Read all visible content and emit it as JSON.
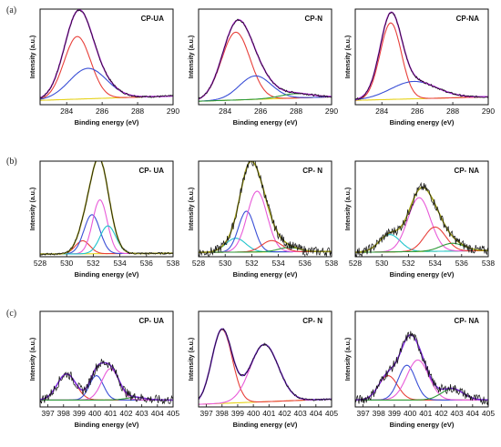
{
  "figure": {
    "row_labels": [
      "(a)",
      "(b)",
      "(c)"
    ]
  },
  "chart_data": [
    {
      "type": "line",
      "row": 0,
      "col": 0,
      "title": "CP-UA",
      "xlabel": "Binding energy (eV)",
      "ylabel": "Intensity (a.u.)",
      "xlim": [
        282.5,
        290
      ],
      "ylim": [
        0,
        1.1
      ],
      "x_ticks": [
        "284",
        "286",
        "288",
        "290"
      ],
      "x_tick_values": [
        284,
        286,
        288,
        290
      ],
      "baseline": {
        "start": 0.05,
        "end": 0.1
      },
      "components": [
        {
          "name": "C1",
          "color": "#e8403a",
          "center": 284.6,
          "width": 0.75,
          "height": 0.72
        },
        {
          "name": "C2",
          "color": "#3a4fd6",
          "center": 285.2,
          "width": 1.05,
          "height": 0.35
        }
      ],
      "envelope_color": "#b02ad8",
      "noise": false
    },
    {
      "type": "line",
      "row": 0,
      "col": 1,
      "title": "CP-N",
      "xlabel": "Binding energy (eV)",
      "ylabel": "Intensity (a.u.)",
      "xlim": [
        282.5,
        290
      ],
      "ylim": [
        0,
        1.1
      ],
      "x_ticks": [
        "284",
        "286",
        "288",
        "290"
      ],
      "x_tick_values": [
        284,
        286,
        288,
        290
      ],
      "baseline": {
        "start": 0.04,
        "end": 0.09
      },
      "components": [
        {
          "name": "C1",
          "color": "#e8403a",
          "center": 284.6,
          "width": 0.8,
          "height": 0.78
        },
        {
          "name": "C2",
          "color": "#3a4fd6",
          "center": 285.7,
          "width": 0.9,
          "height": 0.27
        },
        {
          "name": "C3",
          "color": "#2e9a3a",
          "center": 288.0,
          "width": 0.9,
          "height": 0.05
        }
      ],
      "envelope_color": "#b02ad8",
      "noise": false
    },
    {
      "type": "line",
      "row": 0,
      "col": 2,
      "title": "CP-NA",
      "xlabel": "Binding energy (eV)",
      "ylabel": "Intensity (a.u.)",
      "xlim": [
        282.5,
        290
      ],
      "ylim": [
        0,
        1.1
      ],
      "x_ticks": [
        "284",
        "286",
        "288",
        "290"
      ],
      "x_tick_values": [
        284,
        286,
        288,
        290
      ],
      "baseline": {
        "start": 0.05,
        "end": 0.09
      },
      "components": [
        {
          "name": "C1",
          "color": "#e8403a",
          "center": 284.5,
          "width": 0.6,
          "height": 0.88
        },
        {
          "name": "C2",
          "color": "#3a4fd6",
          "center": 285.8,
          "width": 1.3,
          "height": 0.2
        }
      ],
      "envelope_color": "#b02ad8",
      "noise": false
    },
    {
      "type": "line",
      "row": 1,
      "col": 0,
      "title": "CP- UA",
      "xlabel": "Binding energy (eV)",
      "ylabel": "Intensity (a.u.)",
      "xlim": [
        528,
        538
      ],
      "ylim": [
        0,
        1.1
      ],
      "x_ticks": [
        "528",
        "530",
        "532",
        "534",
        "536",
        "538"
      ],
      "x_tick_values": [
        528,
        530,
        532,
        534,
        536,
        538
      ],
      "baseline": {
        "start": 0.03,
        "end": 0.04
      },
      "components": [
        {
          "name": "O1",
          "color": "#e8403a",
          "center": 531.2,
          "width": 0.55,
          "height": 0.15
        },
        {
          "name": "O2",
          "color": "#3a4fd6",
          "center": 531.9,
          "width": 0.6,
          "height": 0.45
        },
        {
          "name": "O3",
          "color": "#e85ad8",
          "center": 532.5,
          "width": 0.55,
          "height": 0.62
        },
        {
          "name": "O4",
          "color": "#20c4cc",
          "center": 533.1,
          "width": 0.6,
          "height": 0.32
        }
      ],
      "envelope_color": "#9c9a16",
      "noise": false
    },
    {
      "type": "line",
      "row": 1,
      "col": 1,
      "title": "CP- N",
      "xlabel": "Binding energy (eV)",
      "ylabel": "Intensity (a.u.)",
      "xlim": [
        528,
        538
      ],
      "ylim": [
        0,
        1.1
      ],
      "x_ticks": [
        "528",
        "530",
        "532",
        "534",
        "536",
        "538"
      ],
      "x_tick_values": [
        528,
        530,
        532,
        534,
        536,
        538
      ],
      "baseline": {
        "start": 0.05,
        "end": 0.06
      },
      "components": [
        {
          "name": "O1",
          "color": "#20c4cc",
          "center": 530.8,
          "width": 0.75,
          "height": 0.16
        },
        {
          "name": "O2",
          "color": "#3a4fd6",
          "center": 531.6,
          "width": 0.6,
          "height": 0.47
        },
        {
          "name": "O3",
          "color": "#e85ad8",
          "center": 532.4,
          "width": 0.75,
          "height": 0.7
        },
        {
          "name": "O4",
          "color": "#e8403a",
          "center": 533.5,
          "width": 0.75,
          "height": 0.13
        },
        {
          "name": "O5",
          "color": "#2e9a3a",
          "center": 534.8,
          "width": 0.8,
          "height": 0.05
        }
      ],
      "envelope_color": "#9c9a16",
      "noise": true
    },
    {
      "type": "line",
      "row": 1,
      "col": 2,
      "title": "CP- NA",
      "xlabel": "Binding energy (eV)",
      "ylabel": "Intensity (a.u.)",
      "xlim": [
        528,
        538
      ],
      "ylim": [
        0,
        1.1
      ],
      "x_ticks": [
        "528",
        "530",
        "532",
        "534",
        "536",
        "538"
      ],
      "x_tick_values": [
        528,
        530,
        532,
        534,
        536,
        538
      ],
      "baseline": {
        "start": 0.05,
        "end": 0.07
      },
      "components": [
        {
          "name": "O1",
          "color": "#20c4cc",
          "center": 530.6,
          "width": 0.8,
          "height": 0.2
        },
        {
          "name": "O2",
          "color": "#e85ad8",
          "center": 532.8,
          "width": 0.85,
          "height": 0.62
        },
        {
          "name": "O3",
          "color": "#e8403a",
          "center": 534.0,
          "width": 0.8,
          "height": 0.28
        },
        {
          "name": "O4",
          "color": "#2e9a3a",
          "center": 535.3,
          "width": 0.9,
          "height": 0.09
        }
      ],
      "envelope_color": "#9c9a16",
      "noise": true
    },
    {
      "type": "line",
      "row": 2,
      "col": 0,
      "title": "CP- UA",
      "xlabel": "Binding energy (eV)",
      "ylabel": "Intensity (a.u.)",
      "xlim": [
        396.5,
        405
      ],
      "ylim": [
        0,
        1.1
      ],
      "x_ticks": [
        "397",
        "398",
        "399",
        "400",
        "401",
        "402",
        "403",
        "404",
        "405"
      ],
      "x_tick_values": [
        397,
        398,
        399,
        400,
        401,
        402,
        403,
        404,
        405
      ],
      "baseline": {
        "start": 0.08,
        "end": 0.08
      },
      "components": [
        {
          "name": "N1",
          "color": "#e8403a",
          "center": 398.2,
          "width": 0.6,
          "height": 0.3
        },
        {
          "name": "N2",
          "color": "#3a4fd6",
          "center": 400.1,
          "width": 0.45,
          "height": 0.28
        },
        {
          "name": "N3",
          "color": "#e85ad8",
          "center": 401.0,
          "width": 0.55,
          "height": 0.36
        },
        {
          "name": "N4",
          "color": "#2e9a3a",
          "center": 402.6,
          "width": 0.6,
          "height": 0.03
        }
      ],
      "envelope_color": "#7a2ad8",
      "noise": true
    },
    {
      "type": "line",
      "row": 2,
      "col": 1,
      "title": "CP- N",
      "xlabel": "Binding energy (eV)",
      "ylabel": "Intensity (a.u.)",
      "xlim": [
        396.5,
        405
      ],
      "ylim": [
        0,
        1.1
      ],
      "x_ticks": [
        "397",
        "398",
        "399",
        "400",
        "401",
        "402",
        "403",
        "404",
        "405"
      ],
      "x_tick_values": [
        397,
        398,
        399,
        400,
        401,
        402,
        403,
        404,
        405
      ],
      "baseline": {
        "start": 0.03,
        "end": 0.09
      },
      "components": [
        {
          "name": "N1",
          "color": "#e8403a",
          "center": 398.0,
          "width": 0.65,
          "height": 0.85
        },
        {
          "name": "N2",
          "color": "#e85ad8",
          "center": 400.7,
          "width": 0.9,
          "height": 0.66
        }
      ],
      "envelope_color": "#7a2ad8",
      "noise": false
    },
    {
      "type": "line",
      "row": 2,
      "col": 2,
      "title": "CP- NA",
      "xlabel": "Binding energy (eV)",
      "ylabel": "Intensity (a.u.)",
      "xlim": [
        396.5,
        405
      ],
      "ylim": [
        0,
        1.1
      ],
      "x_ticks": [
        "397",
        "398",
        "399",
        "400",
        "401",
        "402",
        "403",
        "404",
        "405"
      ],
      "x_tick_values": [
        397,
        398,
        399,
        400,
        401,
        402,
        403,
        404,
        405
      ],
      "baseline": {
        "start": 0.08,
        "end": 0.08
      },
      "components": [
        {
          "name": "N1",
          "color": "#e8403a",
          "center": 398.6,
          "width": 0.6,
          "height": 0.28
        },
        {
          "name": "N2",
          "color": "#3a4fd6",
          "center": 399.8,
          "width": 0.55,
          "height": 0.4
        },
        {
          "name": "N3",
          "color": "#e85ad8",
          "center": 400.5,
          "width": 0.7,
          "height": 0.46
        },
        {
          "name": "N4",
          "color": "#2e9a3a",
          "center": 402.7,
          "width": 0.7,
          "height": 0.13
        }
      ],
      "envelope_color": "#7a2ad8",
      "noise": true
    }
  ]
}
